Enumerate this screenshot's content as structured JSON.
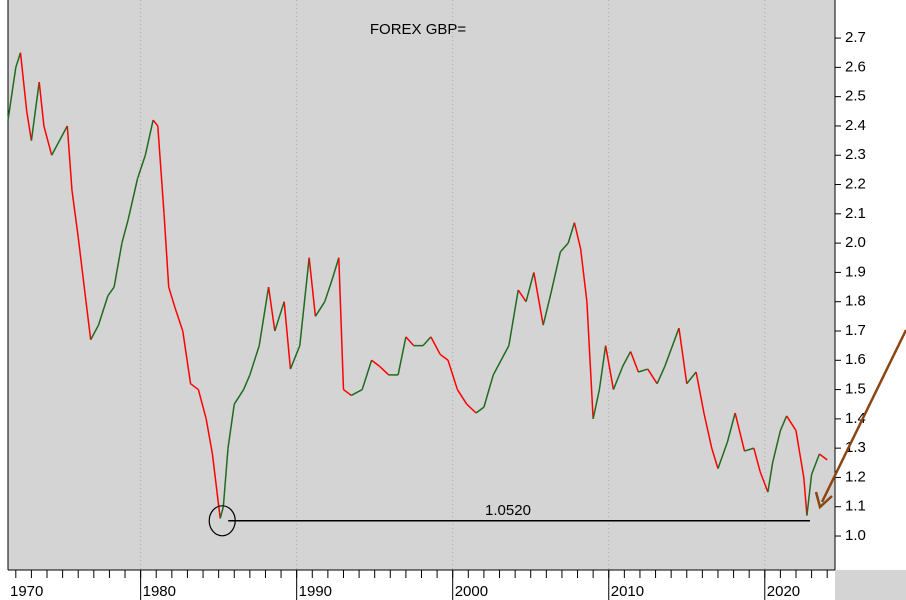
{
  "chart_data": {
    "type": "line",
    "title": "FOREX GBP=",
    "annotation": "1.0520",
    "support_level": 1.052,
    "x": [
      1971.5,
      1972.0,
      1972.3,
      1972.7,
      1973.0,
      1973.5,
      1973.8,
      1974.3,
      1974.8,
      1975.3,
      1975.6,
      1976.0,
      1976.5,
      1976.8,
      1977.3,
      1977.9,
      1978.3,
      1978.8,
      1979.2,
      1979.8,
      1980.3,
      1980.8,
      1981.1,
      1981.5,
      1981.8,
      1982.2,
      1982.7,
      1983.2,
      1983.7,
      1984.2,
      1984.6,
      1985.1,
      1985.3,
      1985.6,
      1986.0,
      1986.6,
      1987.0,
      1987.6,
      1988.2,
      1988.6,
      1989.2,
      1989.6,
      1990.2,
      1990.8,
      1991.2,
      1991.8,
      1992.3,
      1992.7,
      1993.0,
      1993.5,
      1994.2,
      1994.8,
      1995.3,
      1995.9,
      1996.5,
      1997.0,
      1997.5,
      1998.1,
      1998.6,
      1999.2,
      1999.7,
      2000.3,
      2000.9,
      2001.5,
      2002.0,
      2002.6,
      2003.1,
      2003.6,
      2004.2,
      2004.7,
      2005.2,
      2005.8,
      2006.3,
      2006.9,
      2007.4,
      2007.8,
      2008.2,
      2008.6,
      2009.0,
      2009.4,
      2009.8,
      2010.3,
      2010.9,
      2011.4,
      2011.9,
      2012.5,
      2013.1,
      2013.6,
      2014.5,
      2015.0,
      2015.6,
      2016.1,
      2016.6,
      2017.0,
      2017.6,
      2018.1,
      2018.7,
      2019.3,
      2019.7,
      2020.2,
      2020.5,
      2021.0,
      2021.4,
      2022.0,
      2022.5,
      2022.7,
      2023.0,
      2023.5,
      2024.0
    ],
    "series": [
      {
        "name": "GBP=",
        "up_color": "#1f6b1f",
        "down_color": "#ff0000",
        "values": [
          2.42,
          2.6,
          2.65,
          2.45,
          2.35,
          2.55,
          2.4,
          2.3,
          2.35,
          2.4,
          2.18,
          2.02,
          1.8,
          1.67,
          1.72,
          1.82,
          1.85,
          2.0,
          2.08,
          2.22,
          2.3,
          2.42,
          2.4,
          2.1,
          1.85,
          1.78,
          1.7,
          1.52,
          1.5,
          1.4,
          1.28,
          1.06,
          1.1,
          1.3,
          1.45,
          1.5,
          1.55,
          1.65,
          1.85,
          1.7,
          1.8,
          1.57,
          1.65,
          1.95,
          1.75,
          1.8,
          1.88,
          1.95,
          1.5,
          1.48,
          1.5,
          1.6,
          1.58,
          1.55,
          1.55,
          1.68,
          1.65,
          1.65,
          1.68,
          1.62,
          1.6,
          1.5,
          1.45,
          1.42,
          1.44,
          1.55,
          1.6,
          1.65,
          1.84,
          1.8,
          1.9,
          1.72,
          1.83,
          1.97,
          2.0,
          2.07,
          1.98,
          1.8,
          1.4,
          1.5,
          1.65,
          1.5,
          1.58,
          1.63,
          1.56,
          1.57,
          1.52,
          1.58,
          1.71,
          1.52,
          1.56,
          1.42,
          1.3,
          1.23,
          1.32,
          1.42,
          1.29,
          1.3,
          1.22,
          1.15,
          1.25,
          1.36,
          1.41,
          1.36,
          1.2,
          1.07,
          1.21,
          1.28,
          1.26
        ]
      }
    ],
    "xlim": [
      1971.5,
      2024.5
    ],
    "xticks": [
      1970,
      1980,
      1990,
      2000,
      2010,
      2020
    ],
    "ylim": [
      0.884,
      2.83
    ],
    "yticks": [
      {
        "value": 1.0,
        "label": "1.0"
      },
      1.1,
      1.2,
      1.3,
      1.4,
      1.5,
      1.6,
      1.7,
      1.8,
      1.9,
      {
        "value": 2.0,
        "label": "2.0"
      },
      2.1,
      2.2,
      2.3,
      2.4,
      2.5,
      2.6,
      2.7
    ],
    "grid": true
  }
}
